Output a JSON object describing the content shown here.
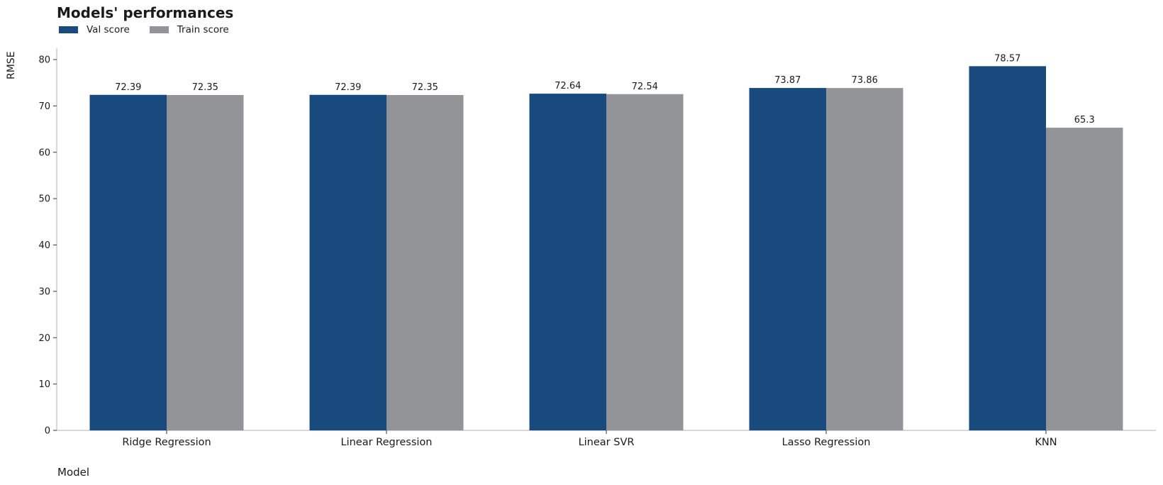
{
  "chart_data": {
    "type": "bar",
    "title": "Models' performances",
    "xlabel": "Model",
    "ylabel": "RMSE",
    "categories": [
      "Ridge Regression",
      "Linear Regression",
      "Linear SVR",
      "Lasso Regression",
      "KNN"
    ],
    "series": [
      {
        "name": "Val score",
        "color": "#184a7e",
        "values": [
          72.39,
          72.39,
          72.64,
          73.87,
          78.57
        ],
        "labels": [
          "72.39",
          "72.39",
          "72.64",
          "73.87",
          "78.57"
        ]
      },
      {
        "name": "Train score",
        "color": "#939497",
        "values": [
          72.35,
          72.35,
          72.54,
          73.86,
          65.3
        ],
        "labels": [
          "72.35",
          "72.35",
          "72.54",
          "73.86",
          "65.3"
        ]
      }
    ],
    "ylim": [
      0,
      82.5
    ],
    "yticks": [
      0,
      10,
      20,
      30,
      40,
      50,
      60,
      70,
      80
    ],
    "grid": false,
    "legend_position": "top-left"
  }
}
